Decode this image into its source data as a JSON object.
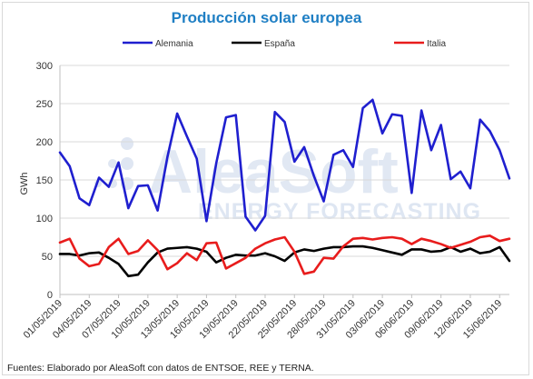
{
  "chart_data": {
    "type": "line",
    "title": "Producción solar europea",
    "ylabel": "GWh",
    "xlabel": "",
    "ylim": [
      0,
      300
    ],
    "yticks": [
      0,
      50,
      100,
      150,
      200,
      250,
      300
    ],
    "grid": true,
    "legend_position": "top",
    "x": [
      "01/05/2019",
      "02/05/2019",
      "03/05/2019",
      "04/05/2019",
      "05/05/2019",
      "06/05/2019",
      "07/05/2019",
      "08/05/2019",
      "09/05/2019",
      "10/05/2019",
      "11/05/2019",
      "12/05/2019",
      "13/05/2019",
      "14/05/2019",
      "15/05/2019",
      "16/05/2019",
      "17/05/2019",
      "18/05/2019",
      "19/05/2019",
      "20/05/2019",
      "21/05/2019",
      "22/05/2019",
      "23/05/2019",
      "24/05/2019",
      "25/05/2019",
      "26/05/2019",
      "27/05/2019",
      "28/05/2019",
      "29/05/2019",
      "30/05/2019",
      "31/05/2019",
      "01/06/2019",
      "02/06/2019",
      "03/06/2019",
      "04/06/2019",
      "05/06/2019",
      "06/06/2019",
      "07/06/2019",
      "08/06/2019",
      "09/06/2019",
      "10/06/2019",
      "11/06/2019",
      "12/06/2019",
      "13/06/2019",
      "14/06/2019",
      "15/06/2019",
      "16/06/2019"
    ],
    "xtick_labels": [
      "01/05/2019",
      "04/05/2019",
      "07/05/2019",
      "10/05/2019",
      "13/05/2019",
      "16/05/2019",
      "19/05/2019",
      "22/05/2019",
      "25/05/2019",
      "28/05/2019",
      "31/05/2019",
      "03/06/2019",
      "06/06/2019",
      "09/06/2019",
      "12/06/2019",
      "15/06/2019"
    ],
    "series": [
      {
        "name": "Alemania",
        "color": "#1f1fcf",
        "values": [
          186,
          168,
          126,
          117,
          153,
          141,
          173,
          113,
          142,
          143,
          110,
          180,
          237,
          207,
          178,
          96,
          172,
          232,
          235,
          102,
          84,
          103,
          239,
          226,
          174,
          193,
          155,
          122,
          183,
          189,
          167,
          244,
          255,
          211,
          236,
          234,
          133,
          241,
          189,
          222,
          151,
          161,
          139,
          229,
          214,
          189,
          152
        ]
      },
      {
        "name": "España",
        "color": "#000000",
        "values": [
          53,
          53,
          51,
          54,
          55,
          48,
          40,
          24,
          26,
          42,
          55,
          60,
          61,
          62,
          60,
          56,
          42,
          48,
          52,
          51,
          51,
          54,
          50,
          44,
          55,
          59,
          57,
          60,
          62,
          62,
          63,
          63,
          61,
          58,
          55,
          52,
          59,
          59,
          56,
          57,
          62,
          56,
          60,
          54,
          56,
          62,
          44
        ]
      },
      {
        "name": "Italia",
        "color": "#e81c1c",
        "values": [
          68,
          73,
          47,
          37,
          40,
          62,
          73,
          53,
          57,
          71,
          58,
          33,
          41,
          54,
          45,
          67,
          68,
          34,
          41,
          48,
          60,
          67,
          72,
          75,
          56,
          27,
          30,
          48,
          47,
          63,
          73,
          74,
          72,
          74,
          75,
          73,
          66,
          73,
          70,
          66,
          61,
          65,
          69,
          75,
          77,
          70,
          73
        ]
      }
    ]
  },
  "watermark": {
    "brand": "AleaSoft",
    "tagline": "ENERGY FORECASTING"
  },
  "source_note": "Fuentes: Elaborado por AleaSoft con datos de ENTSOE, REE y TERNA."
}
